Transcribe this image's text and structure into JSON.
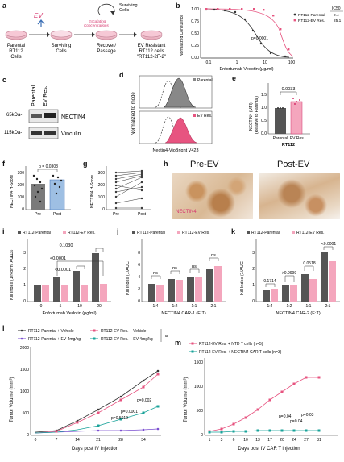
{
  "panel_labels": {
    "a": "a",
    "b": "b",
    "c": "c",
    "d": "d",
    "e": "e",
    "f": "f",
    "g": "g",
    "h": "h",
    "i": "i",
    "j": "j",
    "k": "k",
    "l": "l",
    "m": "m"
  },
  "colors": {
    "parental": "#333333",
    "ev": "#e75480",
    "ev_bar": "#f4a6bd",
    "ev_dark": "#d6336c",
    "blue_bar": "#9ebfe3",
    "teal": "#1aa39a",
    "purple": "#7b4fd0",
    "pink_bg": "#fde6ee"
  },
  "panel_a": {
    "ev_label": "EV",
    "c1": "Parental",
    "c2": "RT112",
    "c3": "Cells",
    "surviving": "Surviving",
    "cells": "Cells",
    "recover": "Recover/",
    "passage": "Passage",
    "surv2": "Surviving",
    "cells2": "Cells",
    "esc1": "Escalating",
    "esc2": "Concentrations",
    "ev_res1": "EV Resistant",
    "ev_res2": "RT112 cells",
    "ev_res3": "\"RT112-2F-2\""
  },
  "panel_b": {
    "ylabel": "Normalized Confluence",
    "xlabel": "Enfortumab Vedotin (μg/ml)",
    "ic50_header": "IC50",
    "legend": [
      {
        "name": "RT112-Parental",
        "ic50": "2.4"
      },
      {
        "name": "RT112-EV Res.",
        "ic50": "25.1"
      }
    ],
    "pvalue": "p=0.0001",
    "yticks": [
      "0.00",
      "0.25",
      "0.50",
      "0.75",
      "1.00"
    ],
    "xticks": [
      "0.1",
      "1",
      "10",
      "100"
    ]
  },
  "panel_c": {
    "col1": "Parental",
    "col2": "EV Res.",
    "mw1": "65kDa-",
    "mw2": "115kDa-",
    "band1": "NECTIN4",
    "band2": "Vinculin"
  },
  "panel_d": {
    "ylabel": "Normalized to mode",
    "xlabel": "Nectin4-VioBright V423",
    "legend1": "Parental",
    "legend2": "EV Res."
  },
  "panel_e": {
    "ylabel1": "NECTIN4 (MFI)",
    "ylabel2": "(Relative to Parental)",
    "pvalue": "0.0033",
    "categories": [
      "Parental",
      "EV Res."
    ],
    "group": "RT112",
    "yticks": [
      "0.0",
      "0.5",
      "1.0",
      "1.5"
    ]
  },
  "panel_f": {
    "ylabel": "NECTIN4 H-Score",
    "pvalue": "p = 0.0308",
    "categories": [
      "Pre",
      "Post"
    ],
    "yticks": [
      "0",
      "100",
      "200",
      "300"
    ]
  },
  "panel_g": {
    "ylabel": "NECTIN4 H-Score",
    "categories": [
      "Pre",
      "Post"
    ],
    "yticks": [
      "0",
      "100",
      "200",
      "300"
    ]
  },
  "panel_h": {
    "pre": "Pre-EV",
    "post": "Post-EV",
    "stain": "NECTIN4"
  },
  "panel_i": {
    "legend1": "RT112-Parental",
    "legend2": "RT112-EV Res.",
    "ylabel1": "Kill Index (1/Norm. AUC",
    "ylabel2": "0-120",
    "xlabel": "Enfortumab Vedotin (μg/ml)",
    "xticks": [
      "0",
      "5",
      "10",
      "20"
    ],
    "yticks": [
      "0",
      "1",
      "2",
      "3"
    ],
    "p1": "0.1030",
    "p2": "<0.0001",
    "p3": "<0.0001"
  },
  "panel_j": {
    "legend1": "RT112-Parental",
    "legend2": "RT112-EV Res.",
    "ylabel": "Kill Index (1/AUC",
    "xlabel": "NECTIN4 CAR-1 (E:T)",
    "xticks": [
      "1:4",
      "1:2",
      "1:1",
      "2:1"
    ],
    "yticks": [
      "0",
      "2",
      "4",
      "6",
      "8"
    ],
    "ns": "ns"
  },
  "panel_k": {
    "legend1": "RT112-Parental",
    "legend2": "RT112-EV Res.",
    "ylabel": "Kill Index (1/AUC",
    "xlabel": "NECTIN4 CAR-2 (E:T)",
    "xticks": [
      "1:4",
      "1:2",
      "1:1",
      "2:1"
    ],
    "yticks": [
      "0",
      "1",
      "2",
      "3"
    ],
    "p1": "0.1714",
    "p2": ">0.9999",
    "p3": "0.0518",
    "p4": "<0.0001"
  },
  "panel_l": {
    "legend": [
      "RT112-Parental + Vehicle",
      "RT112-EV Res. + Vehicle",
      "RT112-Parental + EV 4mg/kg",
      "RT112-EV Res. + EV 4mg/kg"
    ],
    "ns": "ns",
    "ylabel": "Tumor Volume (mm³)",
    "xlabel": "Days post IV Injection",
    "xticks": [
      "0",
      "7",
      "14",
      "21",
      "28",
      "34"
    ],
    "yticks": [
      "0",
      "500",
      "1000",
      "1500",
      "2000"
    ],
    "p1": "p=0.002",
    "p2": "p=0.0001",
    "p3": "p=0.5019"
  },
  "panel_m": {
    "legend": [
      "RT112-EV Res. + NTD T cells (n=5)",
      "RT112-EV Res. + NECTIN4 CAR T cells (n=3)"
    ],
    "ylabel": "Tumor Volume (mm³)",
    "xlabel": "Days post IV CAR T injection",
    "xticks": [
      "1",
      "3",
      "6",
      "10",
      "13",
      "17",
      "20",
      "24",
      "27",
      "31"
    ],
    "yticks": [
      "0",
      "500",
      "1000",
      "1500"
    ],
    "p1": "p=0.04",
    "p2": "p=0.03",
    "p3": "p=0.04"
  }
}
